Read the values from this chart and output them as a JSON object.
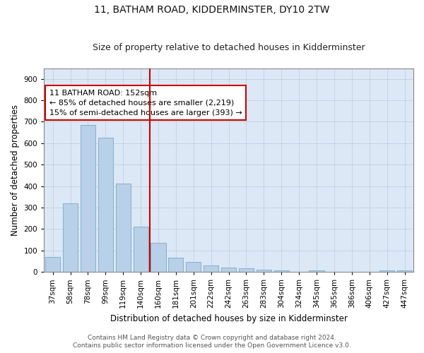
{
  "title": "11, BATHAM ROAD, KIDDERMINSTER, DY10 2TW",
  "subtitle": "Size of property relative to detached houses in Kidderminster",
  "xlabel": "Distribution of detached houses by size in Kidderminster",
  "ylabel": "Number of detached properties",
  "categories": [
    "37sqm",
    "58sqm",
    "78sqm",
    "99sqm",
    "119sqm",
    "140sqm",
    "160sqm",
    "181sqm",
    "201sqm",
    "222sqm",
    "242sqm",
    "263sqm",
    "283sqm",
    "304sqm",
    "324sqm",
    "345sqm",
    "365sqm",
    "386sqm",
    "406sqm",
    "427sqm",
    "447sqm"
  ],
  "values": [
    70,
    320,
    685,
    625,
    410,
    210,
    135,
    65,
    45,
    30,
    20,
    15,
    10,
    5,
    0,
    5,
    0,
    0,
    0,
    5,
    5
  ],
  "bar_color": "#b8d0e8",
  "bar_edge_color": "#7aaac8",
  "vline_color": "#cc0000",
  "vline_x": 5.5,
  "annotation_box_text": "11 BATHAM ROAD: 152sqm\n← 85% of detached houses are smaller (2,219)\n15% of semi-detached houses are larger (393) →",
  "annotation_box_color": "#ffffff",
  "annotation_box_edge_color": "#cc0000",
  "ylim": [
    0,
    950
  ],
  "yticks": [
    0,
    100,
    200,
    300,
    400,
    500,
    600,
    700,
    800,
    900
  ],
  "background_color": "#ffffff",
  "plot_bg_color": "#dce8f5",
  "grid_color": "#c0cfe0",
  "footer_line1": "Contains HM Land Registry data © Crown copyright and database right 2024.",
  "footer_line2": "Contains public sector information licensed under the Open Government Licence v3.0.",
  "title_fontsize": 10,
  "subtitle_fontsize": 9,
  "axis_label_fontsize": 8.5,
  "tick_fontsize": 7.5,
  "annotation_fontsize": 8,
  "footer_fontsize": 6.5
}
